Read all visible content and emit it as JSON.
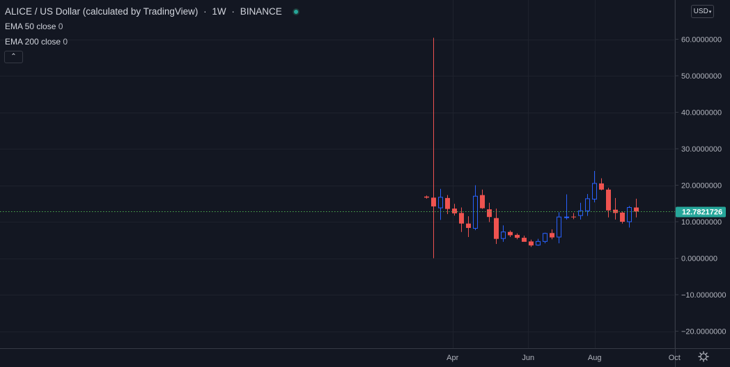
{
  "header": {
    "symbol_title": "ALICE / US Dollar (calculated by TradingView)",
    "interval": "1W",
    "exchange": "BINANCE",
    "status_color": "#26a69a",
    "separator": "·"
  },
  "indicators": [
    {
      "label": "EMA 50 close",
      "value": "0"
    },
    {
      "label": "EMA 200 close",
      "value": "0"
    }
  ],
  "collapse_glyph": "⌃",
  "currency_selector": "USD",
  "settings_icon": "gear-icon",
  "colors": {
    "up": "#2962ff",
    "down": "#ef5350",
    "price_line": "#4caf50",
    "price_label_bg": "#26a69a"
  },
  "chart_data": {
    "type": "candlestick",
    "title": "ALICE / US Dollar (calculated by TradingView)",
    "interval": "1W",
    "y_ticks": [
      "60.0000000",
      "50.0000000",
      "40.0000000",
      "30.0000000",
      "20.0000000",
      "10.0000000",
      "0.0000000",
      "−10.0000000",
      "−20.0000000"
    ],
    "y_tick_values": [
      60,
      50,
      40,
      30,
      20,
      10,
      0,
      -10,
      -20
    ],
    "ylim": [
      -24.5,
      69
    ],
    "x_ticks": [
      "Apr",
      "Jun",
      "Aug",
      "Oct"
    ],
    "x_tick_candle_index": [
      3.8,
      14.6,
      24.1,
      35.5
    ],
    "last_price": "12.7821726",
    "last_price_value": 12.78,
    "grid": true,
    "candles": [
      {
        "o": 16.9,
        "h": 17.2,
        "l": 16.3,
        "c": 16.6
      },
      {
        "o": 16.6,
        "h": 60.4,
        "l": 0.0,
        "c": 14.2
      },
      {
        "o": 13.8,
        "h": 19.0,
        "l": 10.5,
        "c": 16.7
      },
      {
        "o": 16.5,
        "h": 17.3,
        "l": 12.1,
        "c": 13.5
      },
      {
        "o": 13.6,
        "h": 14.9,
        "l": 11.7,
        "c": 12.3
      },
      {
        "o": 12.4,
        "h": 13.9,
        "l": 7.2,
        "c": 9.5
      },
      {
        "o": 9.5,
        "h": 11.5,
        "l": 5.8,
        "c": 8.3
      },
      {
        "o": 8.2,
        "h": 20.0,
        "l": 7.7,
        "c": 17.0
      },
      {
        "o": 17.3,
        "h": 18.8,
        "l": 13.5,
        "c": 13.7
      },
      {
        "o": 13.4,
        "h": 15.2,
        "l": 9.9,
        "c": 11.3
      },
      {
        "o": 11.0,
        "h": 13.6,
        "l": 3.9,
        "c": 5.3
      },
      {
        "o": 5.4,
        "h": 9.0,
        "l": 4.5,
        "c": 7.2
      },
      {
        "o": 7.2,
        "h": 7.6,
        "l": 5.8,
        "c": 6.3
      },
      {
        "o": 6.4,
        "h": 6.8,
        "l": 5.2,
        "c": 5.6
      },
      {
        "o": 5.6,
        "h": 6.2,
        "l": 4.8,
        "c": 4.5
      },
      {
        "o": 4.6,
        "h": 5.1,
        "l": 3.1,
        "c": 3.5
      },
      {
        "o": 3.6,
        "h": 5.3,
        "l": 3.4,
        "c": 4.6
      },
      {
        "o": 4.6,
        "h": 7.0,
        "l": 4.1,
        "c": 6.8
      },
      {
        "o": 6.9,
        "h": 7.9,
        "l": 5.2,
        "c": 5.7
      },
      {
        "o": 5.8,
        "h": 12.6,
        "l": 4.1,
        "c": 11.3
      },
      {
        "o": 11.3,
        "h": 17.5,
        "l": 10.6,
        "c": 11.3
      },
      {
        "o": 11.4,
        "h": 12.4,
        "l": 10.7,
        "c": 11.3
      },
      {
        "o": 11.7,
        "h": 15.2,
        "l": 10.6,
        "c": 13.0
      },
      {
        "o": 13.0,
        "h": 17.6,
        "l": 11.6,
        "c": 16.3
      },
      {
        "o": 16.2,
        "h": 23.9,
        "l": 15.3,
        "c": 20.5
      },
      {
        "o": 20.5,
        "h": 21.9,
        "l": 18.6,
        "c": 18.8
      },
      {
        "o": 18.8,
        "h": 19.3,
        "l": 11.2,
        "c": 13.1
      },
      {
        "o": 13.3,
        "h": 16.5,
        "l": 10.6,
        "c": 12.4
      },
      {
        "o": 12.5,
        "h": 12.8,
        "l": 9.5,
        "c": 10.0
      },
      {
        "o": 10.0,
        "h": 14.3,
        "l": 8.4,
        "c": 13.9
      },
      {
        "o": 13.9,
        "h": 16.3,
        "l": 11.2,
        "c": 12.8
      }
    ]
  }
}
